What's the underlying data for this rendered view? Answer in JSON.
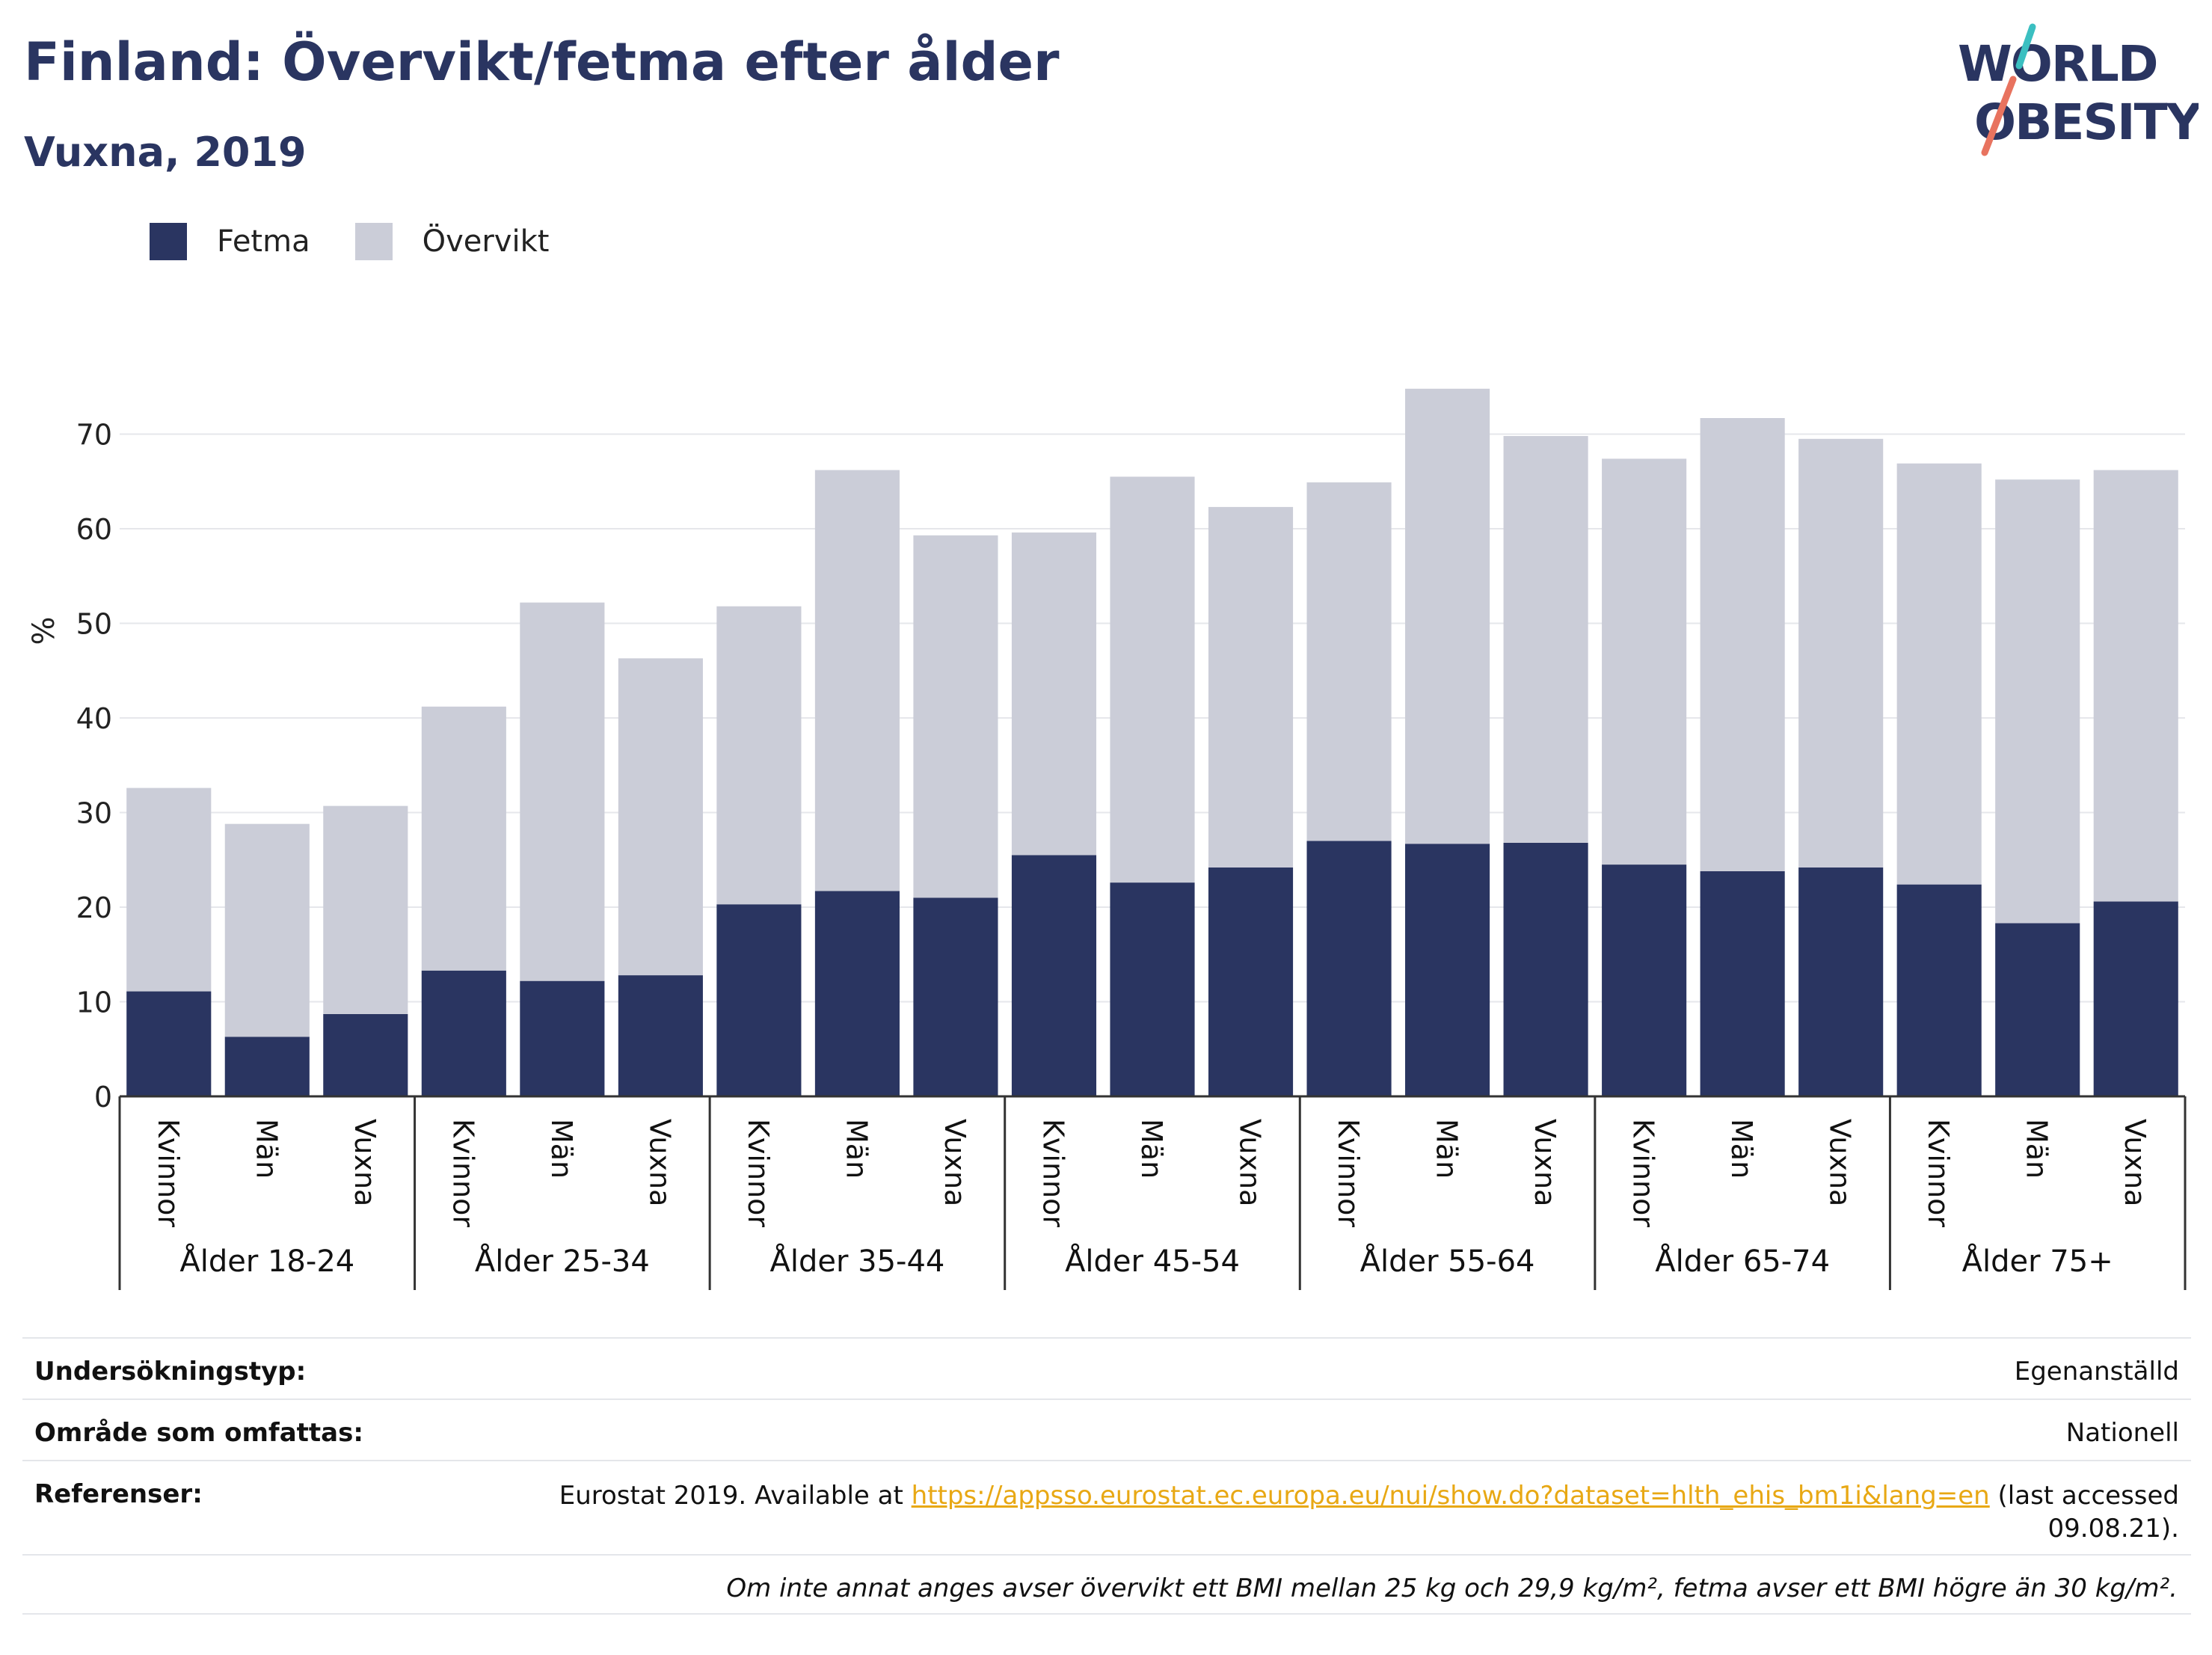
{
  "header": {
    "title": "Finland: Övervikt/fetma efter ålder",
    "subtitle": "Vuxna, 2019"
  },
  "logo": {
    "line1": "WORLD",
    "line2": "OBESITY",
    "colors": {
      "text": "#2a3561",
      "teal": "#3bbfc1",
      "coral": "#e8735f"
    }
  },
  "legend": [
    {
      "label": "Fetma",
      "color": "#2a3561"
    },
    {
      "label": "Övervikt",
      "color": "#cbcdd8"
    }
  ],
  "chart_data": {
    "type": "bar",
    "stacked": true,
    "ylabel": "%",
    "ylim": [
      0,
      80
    ],
    "yticks": [
      0,
      10,
      20,
      30,
      40,
      50,
      60,
      70
    ],
    "grid": true,
    "legend_position": "top-left",
    "groups": [
      "Ålder 18-24",
      "Ålder 25-34",
      "Ålder 35-44",
      "Ålder 45-54",
      "Ålder 55-64",
      "Ålder 65-74",
      "Ålder 75+"
    ],
    "subcategories": [
      "Kvinnor",
      "Män",
      "Vuxna"
    ],
    "series": [
      {
        "name": "Fetma",
        "color": "#2a3561",
        "values": [
          11.1,
          6.3,
          8.7,
          13.3,
          12.2,
          12.8,
          20.3,
          21.7,
          21.0,
          25.5,
          22.6,
          24.2,
          27.0,
          26.7,
          26.8,
          24.5,
          23.8,
          24.2,
          22.4,
          18.3,
          20.6
        ]
      },
      {
        "name": "Övervikt",
        "color": "#cbcdd8",
        "values": [
          21.5,
          22.5,
          22.0,
          27.9,
          40.0,
          33.5,
          31.5,
          44.5,
          38.3,
          34.1,
          42.9,
          38.1,
          37.9,
          48.1,
          43.0,
          42.9,
          47.9,
          45.3,
          44.5,
          46.9,
          45.6
        ]
      }
    ]
  },
  "info": {
    "survey_label": "Undersökningstyp:",
    "survey_value": "Egenanställd",
    "area_label": "Område som omfattas:",
    "area_value": "Nationell",
    "ref_label": "Referenser:",
    "ref_prefix": "Eurostat 2019. Available at",
    "ref_link": "https://appsso.eurostat.ec.europa.eu/nui/show.do?dataset=hlth_ehis_bm1i&lang=en",
    "ref_suffix": "(last accessed",
    "ref_date": "09.08.21).",
    "note": "Om inte annat anges avser övervikt ett BMI mellan 25 kg och 29,9 kg/m², fetma avser ett BMI högre än 30 kg/m²."
  }
}
